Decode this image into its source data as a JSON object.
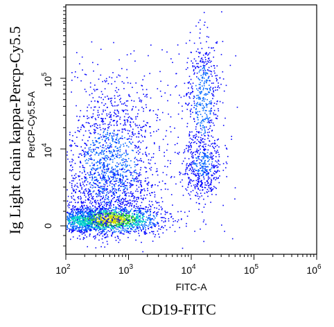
{
  "chart_data": {
    "type": "scatter",
    "style": "flow cytometry density dot plot",
    "xlabel_instrument": "FITC-A",
    "ylabel_instrument": "PerCP-Cy5.5-A",
    "xlabel_outer": "CD19-FITC",
    "ylabel_outer": "Ig Light chain kappa-Percp-Cy5.5",
    "x_scale": "log (biexponential)",
    "y_scale": "log (biexponential)",
    "x_ticks": [
      {
        "base": "10",
        "exp": "2",
        "value": 100
      },
      {
        "base": "10",
        "exp": "3",
        "value": 1000
      },
      {
        "base": "10",
        "exp": "4",
        "value": 10000
      },
      {
        "base": "10",
        "exp": "5",
        "value": 100000
      },
      {
        "base": "10",
        "exp": "6",
        "value": 1000000
      }
    ],
    "y_ticks": [
      {
        "text": "0",
        "value": 0
      },
      {
        "base": "10",
        "exp": "4",
        "value": 10000
      },
      {
        "base": "10",
        "exp": "5",
        "value": 100000
      }
    ],
    "xlim": [
      100,
      1000000
    ],
    "density_colors": [
      "#0000ff",
      "#0066ff",
      "#00cccc",
      "#33cc33",
      "#ccdd00"
    ],
    "populations": [
      {
        "label": "",
        "x_center": 600,
        "y_center": 0,
        "relative_density": "highest"
      },
      {
        "label": "",
        "x_center": 500,
        "y_center": 3500,
        "relative_density": "medium"
      },
      {
        "label": "",
        "x_center": 15000,
        "y_center": 50000,
        "relative_density": "low"
      },
      {
        "label": "",
        "x_center": 15000,
        "y_center": 4000,
        "relative_density": "low"
      }
    ],
    "grid": false,
    "legend": "none"
  }
}
